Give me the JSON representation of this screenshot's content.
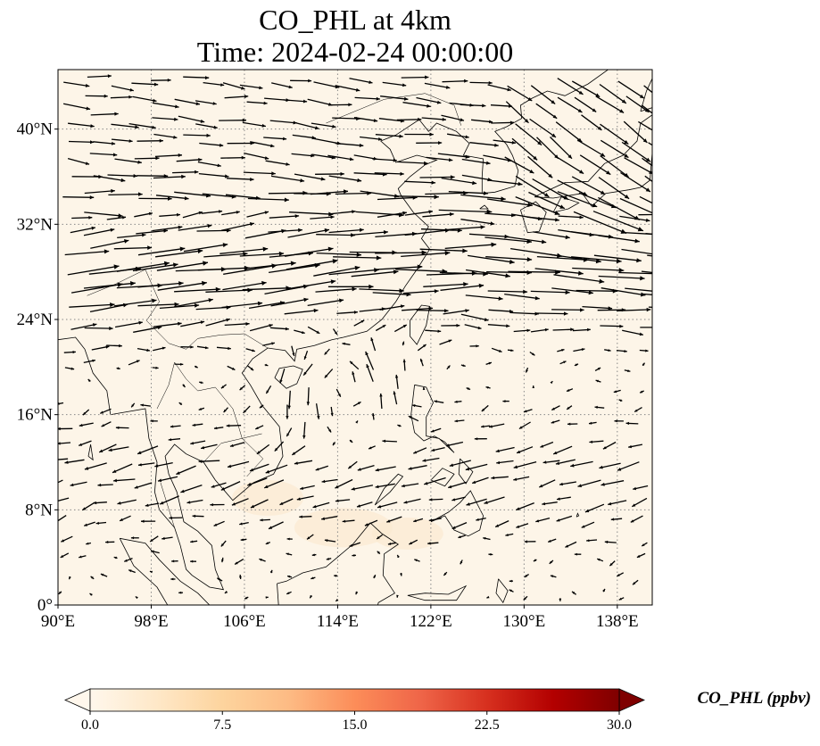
{
  "figure": {
    "title_line1": "CO_PHL at 4km",
    "title_line2": "Time: 2024-02-24 00:00:00"
  },
  "map": {
    "lon_range": [
      90,
      141
    ],
    "lat_range": [
      0,
      45
    ],
    "background_fill": "#fdf5e8",
    "gridlines": "dotted",
    "x_ticks": [
      {
        "value": 90,
        "label": "90°E"
      },
      {
        "value": 98,
        "label": "98°E"
      },
      {
        "value": 106,
        "label": "106°E"
      },
      {
        "value": 114,
        "label": "114°E"
      },
      {
        "value": 122,
        "label": "122°E"
      },
      {
        "value": 130,
        "label": "130°E"
      },
      {
        "value": 138,
        "label": "138°E"
      }
    ],
    "y_ticks": [
      {
        "value": 0,
        "label": "0°"
      },
      {
        "value": 8,
        "label": "8°N"
      },
      {
        "value": 16,
        "label": "16°N"
      },
      {
        "value": 24,
        "label": "24°N"
      },
      {
        "value": 32,
        "label": "32°N"
      },
      {
        "value": 40,
        "label": "40°N"
      }
    ],
    "wind_field": "arrows, strong westerly jet near 24–34°N, cyclonic circulation near 114°E 18°N"
  },
  "colorbar": {
    "label": "CO_PHL (ppbv)",
    "min": 0.0,
    "max": 30.0,
    "colormap": [
      "#fff7ec",
      "#fee8c8",
      "#fdd49e",
      "#fdbb84",
      "#fc8d59",
      "#ef6548",
      "#d7301f",
      "#b30000",
      "#7f0000"
    ],
    "extend": "both",
    "ticks": [
      {
        "value": 0.0,
        "label": "0.0"
      },
      {
        "value": 7.5,
        "label": "7.5"
      },
      {
        "value": 15.0,
        "label": "15.0"
      },
      {
        "value": 22.5,
        "label": "22.5"
      },
      {
        "value": 30.0,
        "label": "30.0"
      }
    ]
  }
}
